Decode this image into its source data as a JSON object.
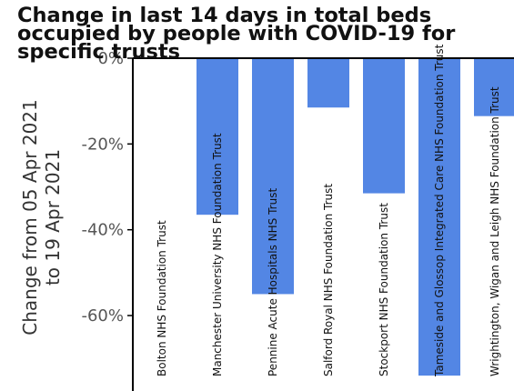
{
  "chart_data": {
    "type": "bar",
    "title": "Change in last 14 days in total beds occupied by people with COVID-19 for specific trusts",
    "ylabel_lines": [
      "Change from 05 Apr 2021",
      "to 19 Apr 2021"
    ],
    "xlabel": "",
    "categories": [
      "Bolton NHS Foundation Trust",
      "Manchester University NHS Foundation Trust",
      "Pennine Acute Hospitals NHS Trust",
      "Salford Royal NHS Foundation Trust",
      "Stockport NHS Foundation Trust",
      "Tameside and Glossop Integrated Care NHS Foundation Trust",
      "Wrightington, Wigan and Leigh NHS Foundation Trust"
    ],
    "values": [
      0,
      -36.5,
      -55,
      -11.5,
      -31.5,
      -74,
      -13.5
    ],
    "yticks": [
      0,
      -20,
      -40,
      -60
    ],
    "ytick_labels": [
      "0%",
      "-20%",
      "-40%",
      "-60%"
    ],
    "ylim": [
      -75,
      0
    ],
    "bar_color": "#5386E4",
    "grid": false,
    "legend": "none"
  }
}
